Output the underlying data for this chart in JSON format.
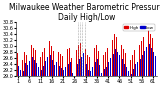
{
  "title": "Milwaukee Weather Barometric Pressure",
  "subtitle": "Daily High/Low",
  "ylim": [
    29.0,
    30.8
  ],
  "yticks": [
    29.0,
    29.2,
    29.4,
    29.6,
    29.8,
    30.0,
    30.2,
    30.4,
    30.6,
    30.8
  ],
  "high_color": "#dd0000",
  "low_color": "#0000cc",
  "legend_high_label": "High",
  "legend_low_label": "Low",
  "background_color": "#ffffff",
  "highs": [
    29.78,
    29.6,
    29.55,
    29.82,
    29.72,
    29.9,
    30.05,
    29.95,
    29.88,
    29.76,
    29.65,
    29.8,
    29.95,
    30.1,
    30.18,
    30.0,
    29.85,
    29.95,
    29.82,
    29.75,
    29.68,
    29.78,
    29.9,
    29.95,
    29.6,
    29.45,
    29.88,
    30.05,
    30.1,
    30.22,
    29.9,
    29.7,
    29.65,
    29.8,
    29.95,
    30.05,
    29.85,
    29.6,
    29.72,
    29.8,
    29.95,
    30.08,
    30.22,
    30.4,
    30.3,
    30.18,
    30.05,
    29.9,
    29.78,
    29.65,
    29.55,
    29.72,
    29.88,
    29.95,
    30.05,
    30.18,
    30.32,
    30.45,
    30.55,
    30.42,
    30.28,
    30.15
  ],
  "lows": [
    29.35,
    29.2,
    29.18,
    29.45,
    29.38,
    29.52,
    29.65,
    29.55,
    29.45,
    29.3,
    29.22,
    29.35,
    29.5,
    29.65,
    29.72,
    29.55,
    29.38,
    29.48,
    29.35,
    29.28,
    29.2,
    29.3,
    29.42,
    29.48,
    29.12,
    28.98,
    29.4,
    29.58,
    29.65,
    29.78,
    29.42,
    29.22,
    29.18,
    29.32,
    29.48,
    29.58,
    29.38,
    29.12,
    29.25,
    29.32,
    29.48,
    29.62,
    29.75,
    29.92,
    29.82,
    29.72,
    29.58,
    29.42,
    29.3,
    29.18,
    29.08,
    29.25,
    29.4,
    29.48,
    29.58,
    29.72,
    29.85,
    29.98,
    30.08,
    29.95,
    29.82,
    29.68
  ],
  "dashed_vline_positions": [
    27,
    28,
    29,
    30
  ],
  "title_fontsize": 5.5,
  "tick_fontsize": 3.5,
  "bar_width": 0.4
}
